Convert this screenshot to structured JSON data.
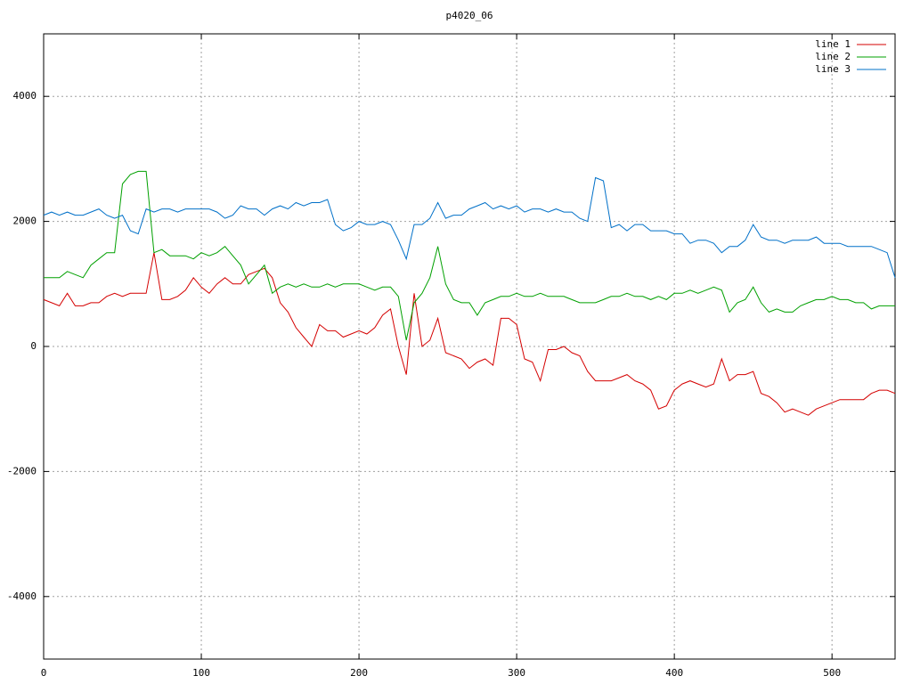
{
  "chart_data": {
    "type": "line",
    "title": "p4020_06",
    "x": [
      0,
      5,
      10,
      15,
      20,
      25,
      30,
      35,
      40,
      45,
      50,
      55,
      60,
      65,
      70,
      75,
      80,
      85,
      90,
      95,
      100,
      105,
      110,
      115,
      120,
      125,
      130,
      135,
      140,
      145,
      150,
      155,
      160,
      165,
      170,
      175,
      180,
      185,
      190,
      195,
      200,
      205,
      210,
      215,
      220,
      225,
      230,
      235,
      240,
      245,
      250,
      255,
      260,
      265,
      270,
      275,
      280,
      285,
      290,
      295,
      300,
      305,
      310,
      315,
      320,
      325,
      330,
      335,
      340,
      345,
      350,
      355,
      360,
      365,
      370,
      375,
      380,
      385,
      390,
      395,
      400,
      405,
      410,
      415,
      420,
      425,
      430,
      435,
      440,
      445,
      450,
      455,
      460,
      465,
      470,
      475,
      480,
      485,
      490,
      495,
      500,
      505,
      510,
      515,
      520,
      525,
      530,
      535,
      540
    ],
    "series": [
      {
        "name": "line 1",
        "color": "#d40000",
        "values": [
          750,
          700,
          650,
          850,
          650,
          650,
          700,
          700,
          800,
          850,
          800,
          850,
          850,
          850,
          1500,
          750,
          750,
          800,
          900,
          1100,
          950,
          850,
          1000,
          1100,
          1000,
          1000,
          1150,
          1200,
          1250,
          1100,
          700,
          550,
          300,
          150,
          0,
          350,
          250,
          250,
          150,
          200,
          250,
          200,
          300,
          500,
          600,
          0,
          -450,
          850,
          0,
          100,
          450,
          -100,
          -150,
          -200,
          -350,
          -250,
          -200,
          -300,
          450,
          450,
          350,
          -200,
          -250,
          -550,
          -50,
          -50,
          0,
          -100,
          -150,
          -400,
          -550,
          -550,
          -550,
          -500,
          -450,
          -550,
          -600,
          -700,
          -1000,
          -950,
          -700,
          -600,
          -550,
          -600,
          -650,
          -600,
          -200,
          -550,
          -450,
          -450,
          -400,
          -750,
          -800,
          -900,
          -1050,
          -1000,
          -1050,
          -1100,
          -1000,
          -950,
          -900,
          -850,
          -850,
          -850,
          -850,
          -750,
          -700,
          -700,
          -750
        ]
      },
      {
        "name": "line 2",
        "color": "#00a000",
        "values": [
          1100,
          1100,
          1100,
          1200,
          1150,
          1100,
          1300,
          1400,
          1500,
          1500,
          2600,
          2750,
          2800,
          2800,
          1500,
          1550,
          1450,
          1450,
          1450,
          1400,
          1500,
          1450,
          1500,
          1600,
          1450,
          1300,
          1000,
          1150,
          1300,
          850,
          950,
          1000,
          950,
          1000,
          950,
          950,
          1000,
          950,
          1000,
          1000,
          1000,
          950,
          900,
          950,
          950,
          800,
          100,
          700,
          850,
          1100,
          1600,
          1000,
          750,
          700,
          700,
          500,
          700,
          750,
          800,
          800,
          850,
          800,
          800,
          850,
          800,
          800,
          800,
          750,
          700,
          700,
          700,
          750,
          800,
          800,
          850,
          800,
          800,
          750,
          800,
          750,
          850,
          850,
          900,
          850,
          900,
          950,
          900,
          550,
          700,
          750,
          950,
          700,
          550,
          600,
          550,
          550,
          650,
          700,
          750,
          750,
          800,
          750,
          750,
          700,
          700,
          600,
          650,
          650,
          650
        ]
      },
      {
        "name": "line 3",
        "color": "#0070c8",
        "values": [
          2100,
          2150,
          2100,
          2150,
          2100,
          2100,
          2150,
          2200,
          2100,
          2050,
          2100,
          1850,
          1800,
          2200,
          2150,
          2200,
          2200,
          2150,
          2200,
          2200,
          2200,
          2200,
          2150,
          2050,
          2100,
          2250,
          2200,
          2200,
          2100,
          2200,
          2250,
          2200,
          2300,
          2250,
          2300,
          2300,
          2350,
          1950,
          1850,
          1900,
          2000,
          1950,
          1950,
          2000,
          1950,
          1700,
          1400,
          1950,
          1950,
          2050,
          2300,
          2050,
          2100,
          2100,
          2200,
          2250,
          2300,
          2200,
          2250,
          2200,
          2250,
          2150,
          2200,
          2200,
          2150,
          2200,
          2150,
          2150,
          2050,
          2000,
          2700,
          2650,
          1900,
          1950,
          1850,
          1950,
          1950,
          1850,
          1850,
          1850,
          1800,
          1800,
          1650,
          1700,
          1700,
          1650,
          1500,
          1600,
          1600,
          1700,
          1950,
          1750,
          1700,
          1700,
          1650,
          1700,
          1700,
          1700,
          1750,
          1650,
          1650,
          1650,
          1600,
          1600,
          1600,
          1600,
          1550,
          1500,
          1100
        ]
      }
    ],
    "xlim": [
      0,
      540
    ],
    "xticks": [
      0,
      100,
      200,
      300,
      400,
      500
    ],
    "ylim": [
      -5000,
      5000
    ],
    "yticks": [
      -4000,
      -2000,
      0,
      2000,
      4000
    ],
    "grid": true,
    "legend": "top-right"
  }
}
